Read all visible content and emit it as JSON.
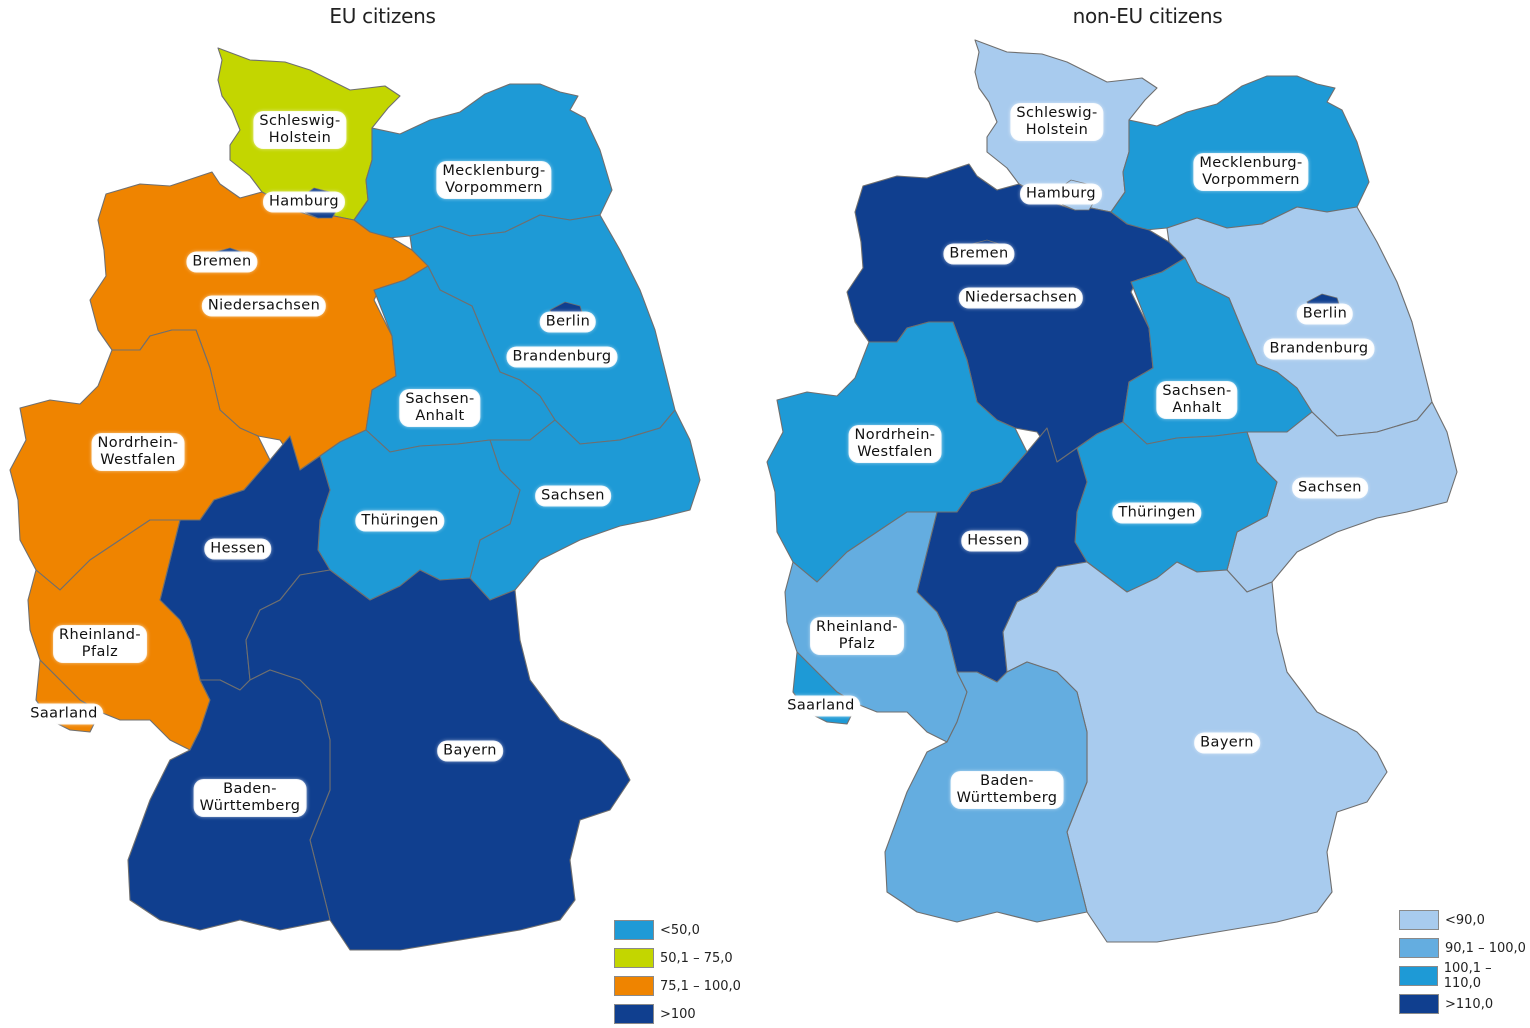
{
  "maps": [
    {
      "title": "EU citizens",
      "legend": [
        {
          "label": "<50,0",
          "color": "#1e9ad6"
        },
        {
          "label": "50,1 – 75,0",
          "color": "#c3d600"
        },
        {
          "label": "75,1 – 100,0",
          "color": "#ef8400"
        },
        {
          "label": ">100",
          "color": "#103f8f"
        }
      ],
      "states": {
        "Schleswig-Holstein": {
          "label": "Schleswig-\nHolstein",
          "class": 1
        },
        "Hamburg": {
          "label": "Hamburg",
          "class": 3
        },
        "Mecklenburg-Vorpommern": {
          "label": "Mecklenburg-\nVorpommern",
          "class": 0
        },
        "Bremen": {
          "label": "Bremen",
          "class": 3
        },
        "Niedersachsen": {
          "label": "Niedersachsen",
          "class": 2
        },
        "Berlin": {
          "label": "Berlin",
          "class": 3
        },
        "Brandenburg": {
          "label": "Brandenburg",
          "class": 0
        },
        "Sachsen-Anhalt": {
          "label": "Sachsen-\nAnhalt",
          "class": 0
        },
        "Nordrhein-Westfalen": {
          "label": "Nordrhein-\nWestfalen",
          "class": 2
        },
        "Sachsen": {
          "label": "Sachsen",
          "class": 0
        },
        "Thüringen": {
          "label": "Thüringen",
          "class": 0
        },
        "Hessen": {
          "label": "Hessen",
          "class": 3
        },
        "Rheinland-Pfalz": {
          "label": "Rheinland-\nPfalz",
          "class": 2
        },
        "Saarland": {
          "label": "Saarland",
          "class": 2
        },
        "Bayern": {
          "label": "Bayern",
          "class": 3
        },
        "Baden-Württemberg": {
          "label": "Baden-\nWürttemberg",
          "class": 3
        }
      }
    },
    {
      "title": "non-EU citizens",
      "legend": [
        {
          "label": "<90,0",
          "color": "#a8cbee"
        },
        {
          "label": "90,1 – 100,0",
          "color": "#64ade0"
        },
        {
          "label": "100,1 – 110,0",
          "color": "#1e9ad6"
        },
        {
          "label": ">110,0",
          "color": "#103f8f"
        }
      ],
      "states": {
        "Schleswig-Holstein": {
          "label": "Schleswig-\nHolstein",
          "class": 0
        },
        "Hamburg": {
          "label": "Hamburg",
          "class": 0
        },
        "Mecklenburg-Vorpommern": {
          "label": "Mecklenburg-\nVorpommern",
          "class": 2
        },
        "Bremen": {
          "label": "Bremen",
          "class": 3
        },
        "Niedersachsen": {
          "label": "Niedersachsen",
          "class": 3
        },
        "Berlin": {
          "label": "Berlin",
          "class": 3
        },
        "Brandenburg": {
          "label": "Brandenburg",
          "class": 0
        },
        "Sachsen-Anhalt": {
          "label": "Sachsen-\nAnhalt",
          "class": 2
        },
        "Nordrhein-Westfalen": {
          "label": "Nordrhein-\nWestfalen",
          "class": 2
        },
        "Sachsen": {
          "label": "Sachsen",
          "class": 0
        },
        "Thüringen": {
          "label": "Thüringen",
          "class": 2
        },
        "Hessen": {
          "label": "Hessen",
          "class": 3
        },
        "Rheinland-Pfalz": {
          "label": "Rheinland-\nPfalz",
          "class": 1
        },
        "Saarland": {
          "label": "Saarland",
          "class": 2
        },
        "Bayern": {
          "label": "Bayern",
          "class": 0
        },
        "Baden-Württemberg": {
          "label": "Baden-\nWürttemberg",
          "class": 1
        }
      }
    }
  ]
}
